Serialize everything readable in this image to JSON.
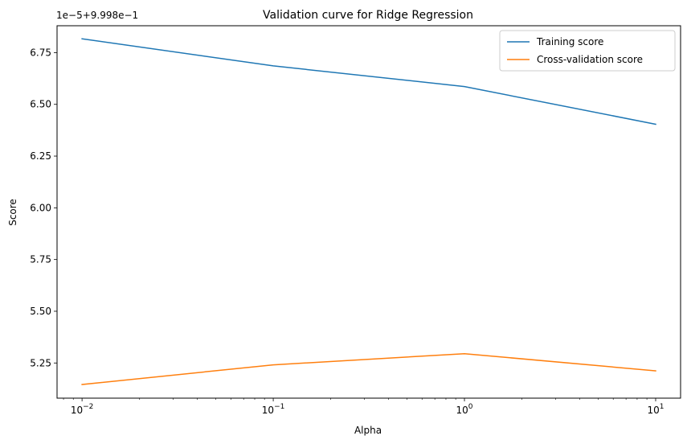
{
  "chart_data": {
    "type": "line",
    "title": "Validation curve for Ridge Regression",
    "xlabel": "Alpha",
    "ylabel": "Score",
    "x_scale": "log",
    "x": [
      0.01,
      0.1,
      1,
      10
    ],
    "xlim": [
      0.0074,
      13.5
    ],
    "ylim": [
      5.08,
      6.88
    ],
    "offset_text": "1e−5+9.998e−1",
    "x_ticks": [
      {
        "value": 0.01,
        "base": "10",
        "exp": "−2"
      },
      {
        "value": 0.1,
        "base": "10",
        "exp": "−1"
      },
      {
        "value": 1,
        "base": "10",
        "exp": "0"
      },
      {
        "value": 10,
        "base": "10",
        "exp": "1"
      }
    ],
    "y_ticks": [
      {
        "value": 5.25,
        "label": "5.25"
      },
      {
        "value": 5.5,
        "label": "5.50"
      },
      {
        "value": 5.75,
        "label": "5.75"
      },
      {
        "value": 6.0,
        "label": "6.00"
      },
      {
        "value": 6.25,
        "label": "6.25"
      },
      {
        "value": 6.5,
        "label": "6.50"
      },
      {
        "value": 6.75,
        "label": "6.75"
      }
    ],
    "series": [
      {
        "name": "Training score",
        "color": "#1f77b4",
        "values": [
          6.817,
          6.686,
          6.586,
          6.404
        ]
      },
      {
        "name": "Cross-validation score",
        "color": "#ff7f0e",
        "values": [
          5.146,
          5.241,
          5.295,
          5.212
        ]
      }
    ],
    "legend_position": "upper right",
    "grid": false
  }
}
